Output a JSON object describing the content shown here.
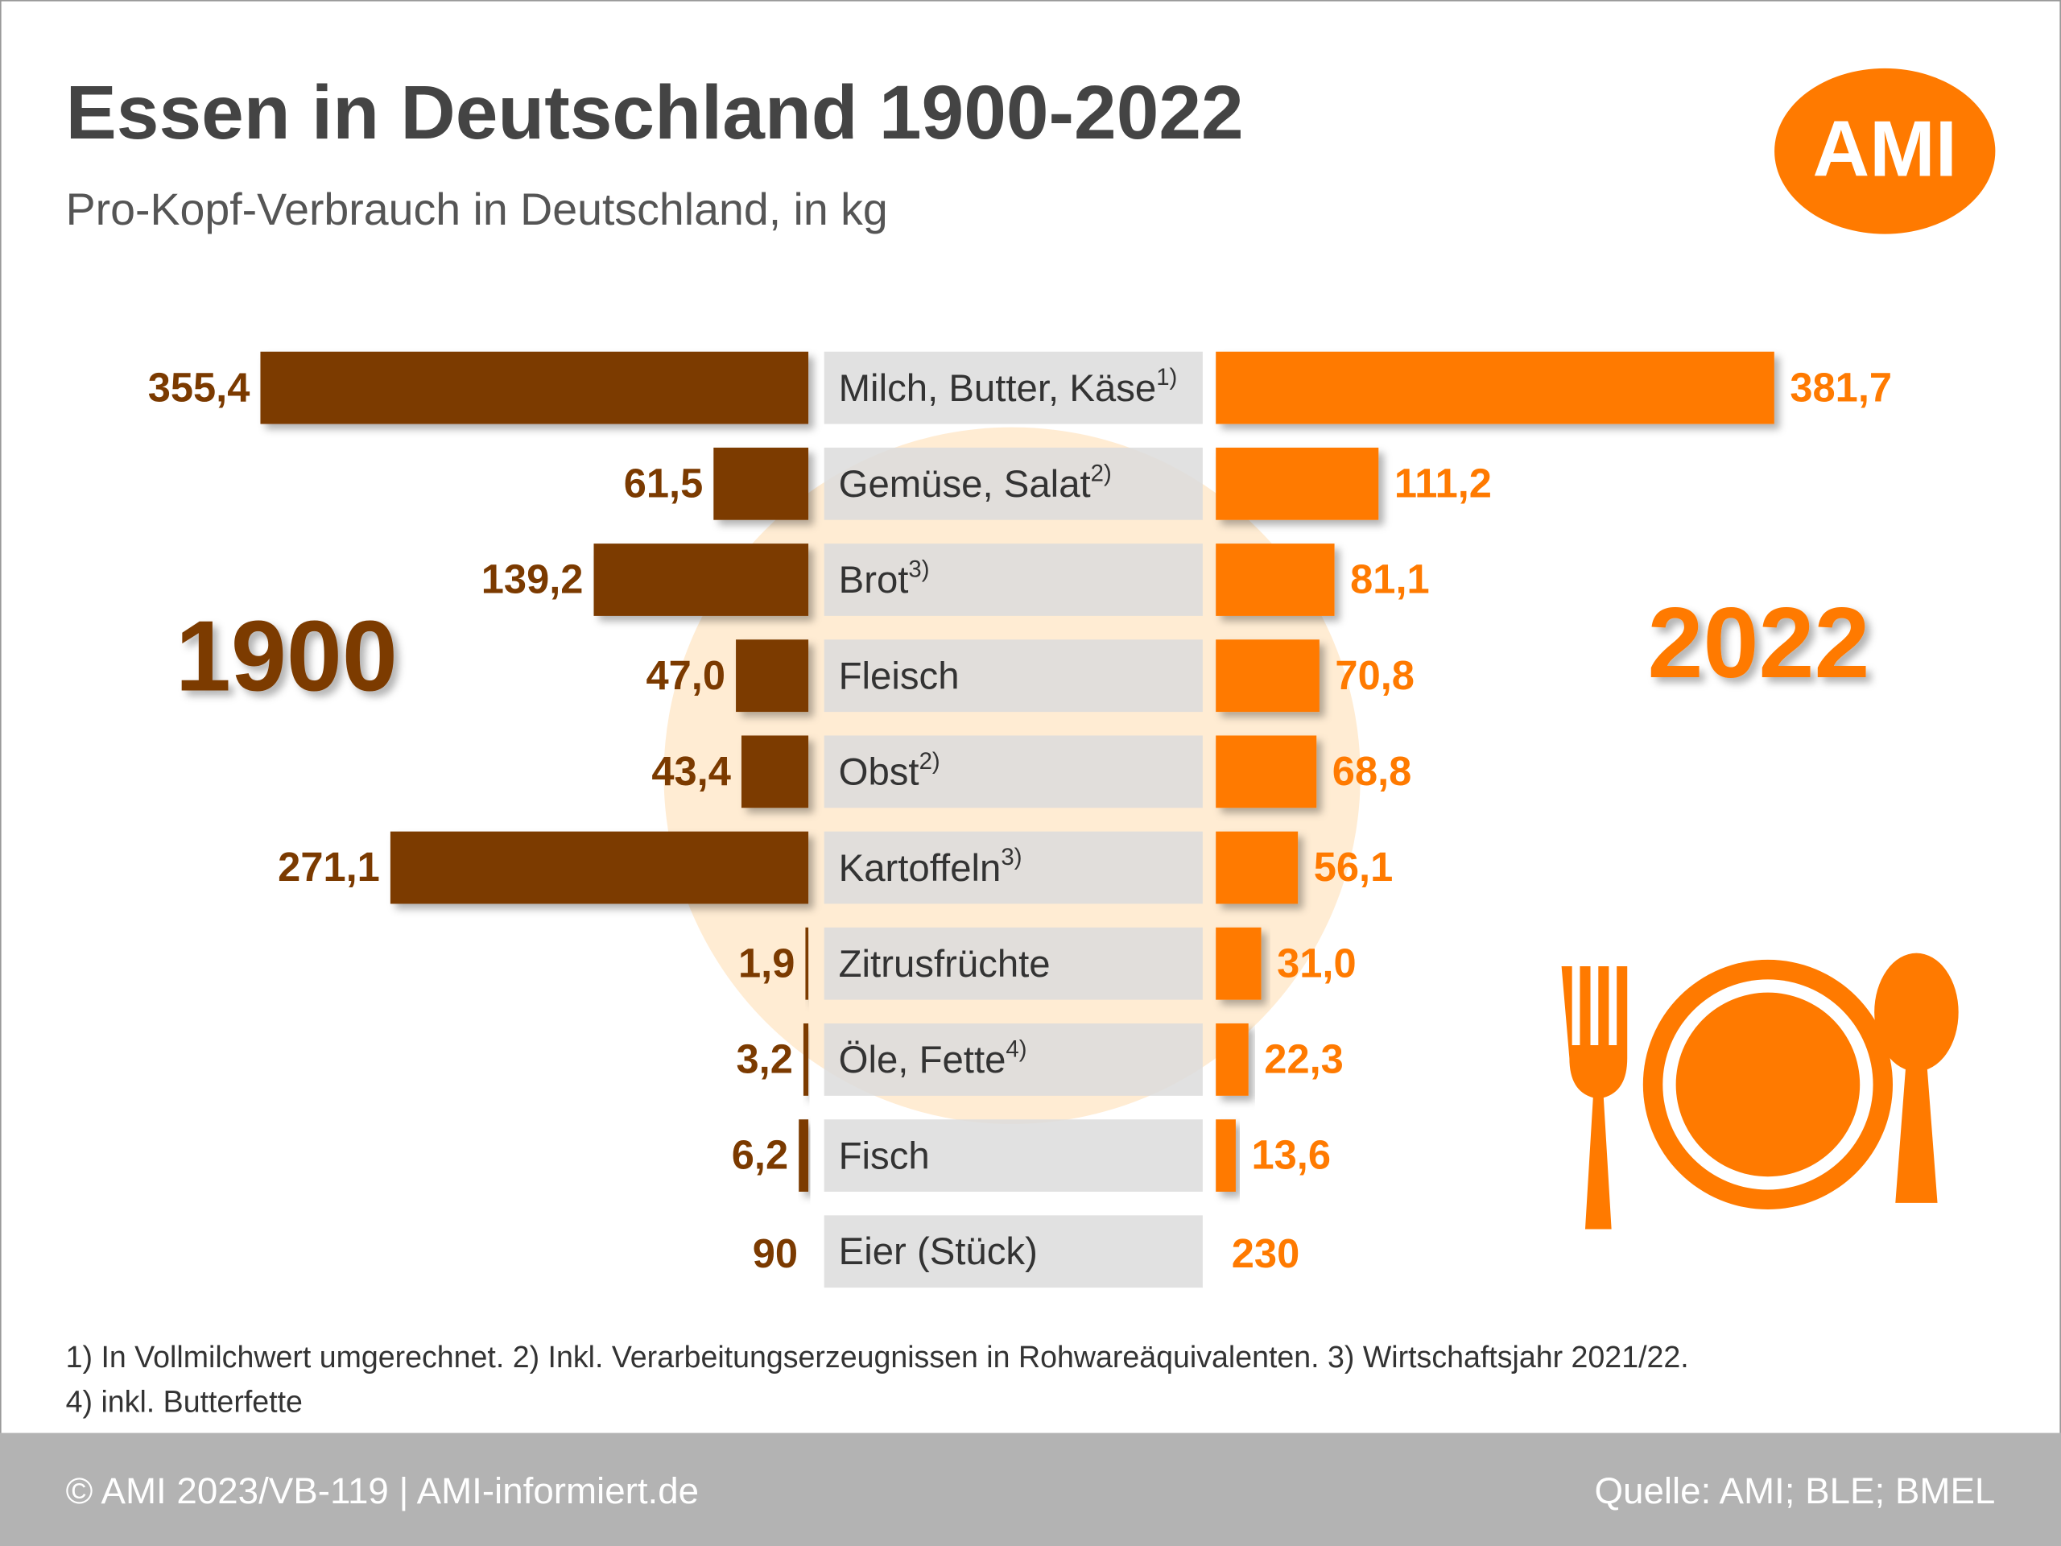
{
  "chart_data": {
    "type": "butterfly_bar",
    "title": "Essen in Deutschland 1900-2022",
    "subtitle": "Pro-Kopf-Verbrauch in Deutschland, in kg",
    "logo": "AMI",
    "categories": [
      "Milch, Butter, Käse",
      "Gemüse, Salat",
      "Brot",
      "Fleisch",
      "Obst",
      "Kartoffeln",
      "Zitrusfrüchte",
      "Öle, Fette",
      "Fisch"
    ],
    "category_notes": [
      "1)",
      "2)",
      "3)",
      null,
      "2)",
      "3)",
      null,
      "4)",
      null
    ],
    "series": [
      {
        "name": "1900",
        "color": "#7b3a00",
        "values": [
          355.4,
          61.5,
          139.2,
          47.0,
          43.4,
          271.1,
          1.9,
          3.2,
          6.2
        ],
        "value_labels": [
          "355,4",
          "61,5",
          "139,2",
          "47,0",
          "43,4",
          "271,1",
          "1,9",
          "3,2",
          "6,2"
        ]
      },
      {
        "name": "2022",
        "color": "#ff7a00",
        "values": [
          381.7,
          111.2,
          81.1,
          70.8,
          68.8,
          56.1,
          31.0,
          22.3,
          13.6
        ],
        "value_labels": [
          "381,7",
          "111,2",
          "81,1",
          "70,8",
          "68,8",
          "56,1",
          "31,0",
          "22,3",
          "13,6"
        ]
      }
    ],
    "extra_row": {
      "label": "Eier (Stück)",
      "values": [
        90,
        230
      ]
    },
    "footnotes": [
      "1) In Vollmilchwert umgerechnet. 2) Inkl. Verarbeitungserzeugnissen in Rohwareäquivalenten. 3) Wirtschaftsjahr 2021/22.",
      "4) inkl. Butterfette"
    ],
    "footer_left": "© AMI 2023/VB-119 | AMI-informiert.de",
    "footer_right": "Quelle: AMI; BLE; BMEL"
  }
}
